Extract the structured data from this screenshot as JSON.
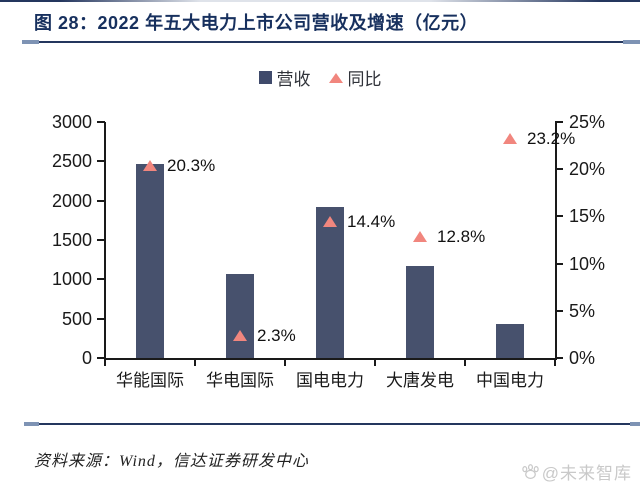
{
  "header": {
    "title": "图 28：2022 年五大电力上市公司营收及增速（亿元）"
  },
  "legend": {
    "items": [
      {
        "label": "营收",
        "marker": "square"
      },
      {
        "label": "同比",
        "marker": "triangle"
      }
    ]
  },
  "chart_data": {
    "type": "bar",
    "title": "2022 年五大电力上市公司营收及增速（亿元）",
    "categories": [
      "华能国际",
      "华电国际",
      "国电电力",
      "大唐发电",
      "中国电力"
    ],
    "series": [
      {
        "name": "营收",
        "type": "bar",
        "axis": "left",
        "unit": "亿元",
        "values": [
          2467,
          1070,
          1914,
          1167,
          437
        ]
      },
      {
        "name": "同比",
        "type": "scatter",
        "marker": "triangle",
        "axis": "right",
        "unit": "%",
        "values": [
          20.3,
          2.3,
          14.4,
          12.8,
          23.2
        ],
        "labels": [
          "20.3%",
          "2.3%",
          "14.4%",
          "12.8%",
          "23.2%"
        ]
      }
    ],
    "left_axis": {
      "min": 0,
      "max": 3000,
      "ticks": [
        0,
        500,
        1000,
        1500,
        2000,
        2500,
        3000
      ]
    },
    "right_axis": {
      "min": 0,
      "max": 25,
      "ticks": [
        "0%",
        "5%",
        "10%",
        "15%",
        "20%",
        "25%"
      ],
      "tick_values": [
        0,
        5,
        10,
        15,
        20,
        25
      ]
    },
    "grid": false,
    "legend_position": "top"
  },
  "footer": {
    "source": "资料来源：Wind，信达证券研发中心",
    "watermark": "@未来智库"
  },
  "colors": {
    "bar": "#47516d",
    "legend_square": "#3f4a6b",
    "triangle": "#f1867e",
    "title": "#17305e",
    "rule": "#24365e",
    "axis": "#1a1a1a",
    "watermark": "#c9c9c9"
  }
}
